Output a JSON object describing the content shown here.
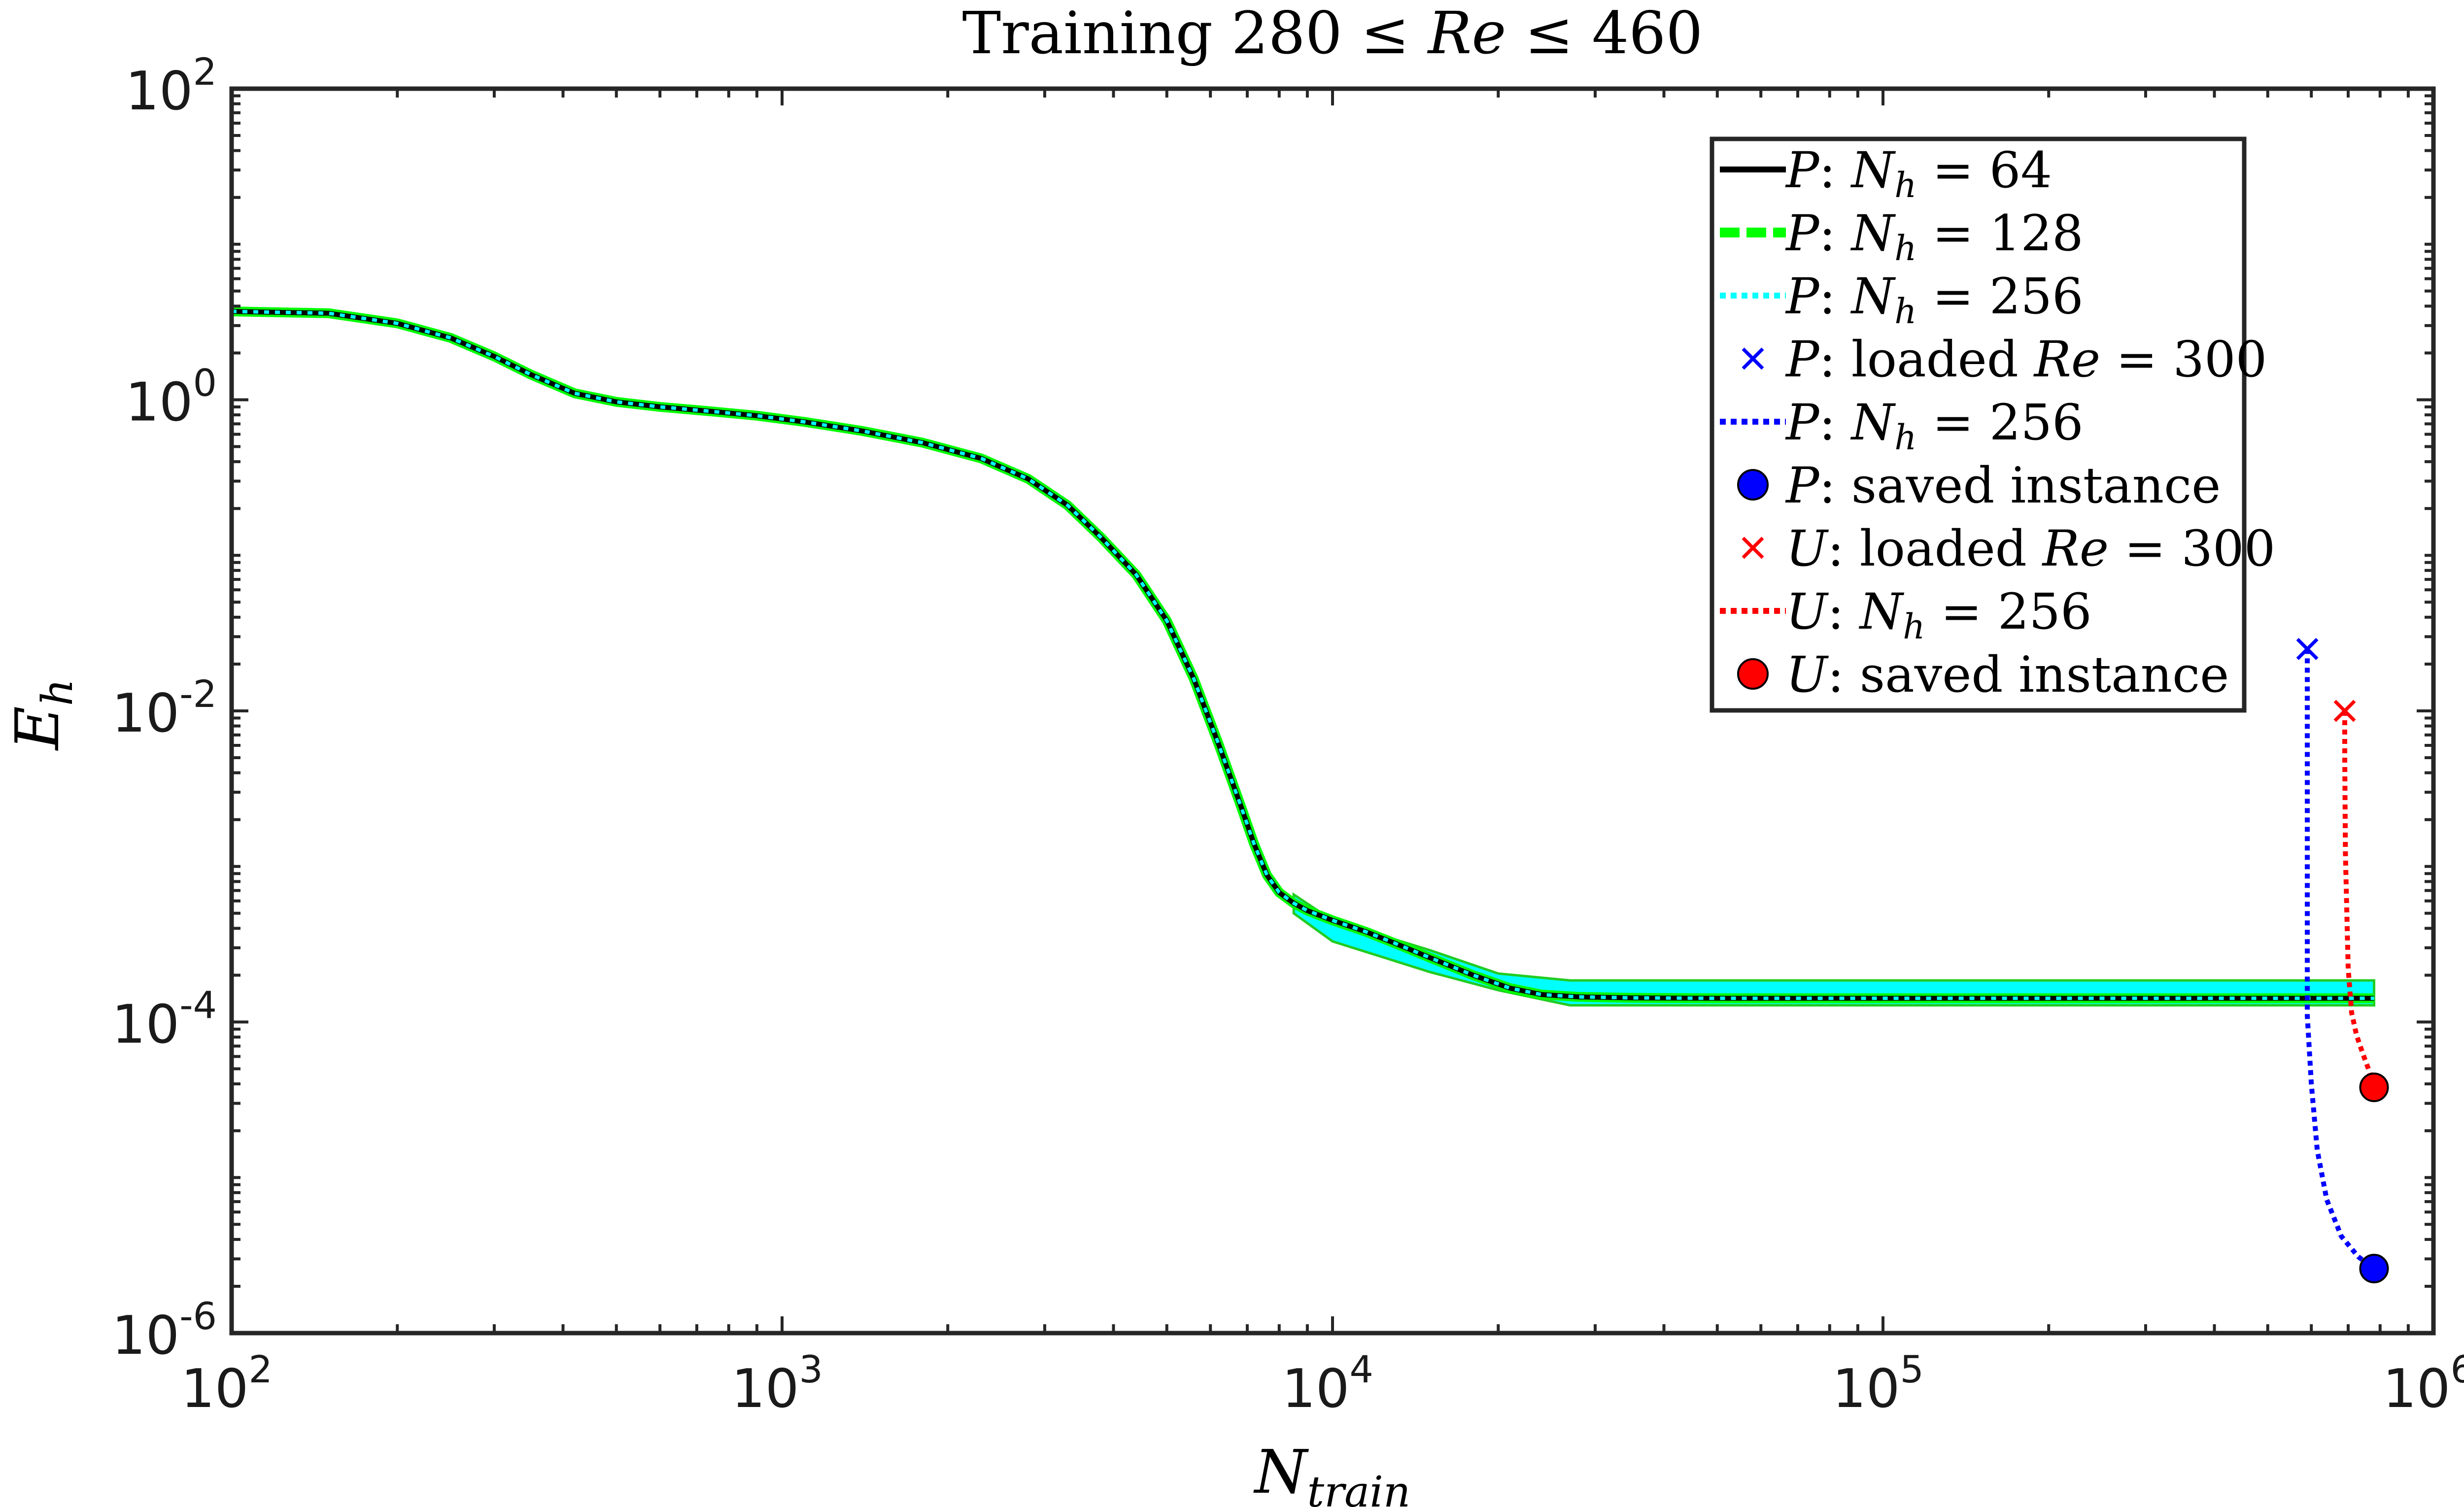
{
  "chart_data": {
    "type": "line",
    "title": "Training 280 ≤ Re ≤ 460",
    "xlabel": "N_train",
    "ylabel": "E_h",
    "xscale": "log",
    "yscale": "log",
    "xlim": [
      100,
      1000000
    ],
    "ylim": [
      1e-06,
      100
    ],
    "grid": false,
    "legend_position": "top-right",
    "x_ticks": [
      {
        "base": "10",
        "exp": "2"
      },
      {
        "base": "10",
        "exp": "3"
      },
      {
        "base": "10",
        "exp": "4"
      },
      {
        "base": "10",
        "exp": "5"
      },
      {
        "base": "10",
        "exp": "6"
      }
    ],
    "y_ticks": [
      {
        "base": "10",
        "exp": "-6"
      },
      {
        "base": "10",
        "exp": "-4"
      },
      {
        "base": "10",
        "exp": "-2"
      },
      {
        "base": "10",
        "exp": "0"
      },
      {
        "base": "10",
        "exp": "2"
      }
    ],
    "main_curve": {
      "x": [
        100,
        150,
        200,
        250,
        300,
        350,
        420,
        500,
        600,
        750,
        900,
        1100,
        1400,
        1800,
        2300,
        2800,
        3300,
        3800,
        4400,
        5000,
        5600,
        6200,
        6800,
        7200,
        7600,
        8000,
        8500,
        9000,
        10000,
        11500,
        13000,
        15000,
        18000,
        21000,
        24000,
        28000,
        35000,
        50000,
        100000,
        200000,
        400000,
        600000,
        780000
      ],
      "y": [
        3.7,
        3.6,
        3.1,
        2.5,
        1.9,
        1.45,
        1.1,
        0.97,
        0.9,
        0.84,
        0.79,
        0.72,
        0.63,
        0.53,
        0.42,
        0.31,
        0.21,
        0.13,
        0.075,
        0.038,
        0.016,
        0.0062,
        0.0025,
        0.0014,
        0.00088,
        0.00068,
        0.00058,
        0.00052,
        0.00045,
        0.00038,
        0.00032,
        0.00026,
        0.0002,
        0.000165,
        0.00015,
        0.000145,
        0.000143,
        0.000142,
        0.000142,
        0.000142,
        0.000142,
        0.000142,
        0.000142
      ]
    },
    "band": {
      "x_start": 8500,
      "x_end": 780000,
      "lower": [
        0.0005,
        0.00033,
        0.00021,
        0.00016,
        0.000128,
        0.000128,
        0.000128
      ],
      "upper": [
        0.00066,
        0.00045,
        0.00029,
        0.000205,
        0.000185,
        0.000185,
        0.000185
      ],
      "x": [
        8500,
        10000,
        15000,
        20000,
        27000,
        100000,
        780000
      ]
    },
    "series": [
      {
        "name": "P: N_h = 64",
        "color": "#000000",
        "dash": "solid"
      },
      {
        "name": "P: N_h = 128",
        "color": "#00ff00",
        "dash": "dashed"
      },
      {
        "name": "P: N_h = 256",
        "color": "#00ffff",
        "dash": "dotted"
      },
      {
        "name": "P: loaded Re = 300",
        "color": "#0000ff",
        "marker": "x",
        "x": [
          590000
        ],
        "y": [
          0.025
        ]
      },
      {
        "name": "P: N_h = 256",
        "color": "#0000ff",
        "dash": "dotted",
        "x": [
          590000,
          590000,
          600000,
          615000,
          640000,
          680000,
          730000,
          780000
        ],
        "y": [
          0.025,
          0.00011,
          4e-05,
          1.5e-05,
          7.2e-06,
          4.2e-06,
          3.1e-06,
          2.6e-06
        ]
      },
      {
        "name": "P: saved instance",
        "color": "#0000ff",
        "marker": "circle",
        "x": [
          780000
        ],
        "y": [
          2.6e-06
        ]
      },
      {
        "name": "U: loaded Re = 300",
        "color": "#ff0000",
        "marker": "x",
        "x": [
          690000
        ],
        "y": [
          0.01
        ]
      },
      {
        "name": "U: N_h = 256",
        "color": "#ff0000",
        "dash": "dotted",
        "x": [
          690000,
          690000,
          692000,
          700000,
          710000,
          725000,
          745000,
          765000,
          780000
        ],
        "y": [
          0.01,
          0.005,
          0.0012,
          0.00022,
          0.000115,
          8.2e-05,
          6.2e-05,
          4.8e-05,
          3.8e-05
        ]
      },
      {
        "name": "U: saved instance",
        "color": "#ff0000",
        "marker": "circle",
        "x": [
          780000
        ],
        "y": [
          3.8e-05
        ]
      }
    ],
    "legend": [
      {
        "sym": "P",
        "text": ":  ",
        "math": "N",
        "sub": "h",
        "rest": " = 64",
        "color": "#000000",
        "style": "line-solid"
      },
      {
        "sym": "P",
        "text": ":  ",
        "math": "N",
        "sub": "h",
        "rest": " = 128",
        "color": "#00ff00",
        "style": "line-dashed"
      },
      {
        "sym": "P",
        "text": ":  ",
        "math": "N",
        "sub": "h",
        "rest": " = 256",
        "color": "#00ffff",
        "style": "line-dotted"
      },
      {
        "sym": "P",
        "text": ":  loaded ",
        "math": "Re",
        "sub": "",
        "rest": " = 300",
        "color": "#0000ff",
        "style": "marker-x"
      },
      {
        "sym": "P",
        "text": ":  ",
        "math": "N",
        "sub": "h",
        "rest": " = 256",
        "color": "#0000ff",
        "style": "line-dotted"
      },
      {
        "sym": "P",
        "text": ":  saved instance",
        "math": "",
        "sub": "",
        "rest": "",
        "color": "#0000ff",
        "style": "marker-circle"
      },
      {
        "sym": "U",
        "text": ":  loaded ",
        "math": "Re",
        "sub": "",
        "rest": " = 300",
        "color": "#ff0000",
        "style": "marker-x"
      },
      {
        "sym": "U",
        "text": ":  ",
        "math": "N",
        "sub": "h",
        "rest": " = 256",
        "color": "#ff0000",
        "style": "line-dotted"
      },
      {
        "sym": "U",
        "text": ":  saved instance",
        "math": "",
        "sub": "",
        "rest": "",
        "color": "#ff0000",
        "style": "marker-circle"
      }
    ]
  }
}
